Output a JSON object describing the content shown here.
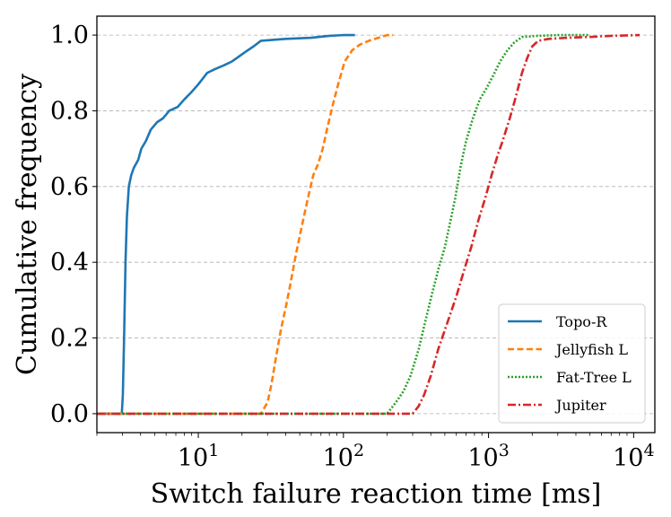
{
  "chart_data": {
    "type": "line",
    "title": "",
    "xlabel": "Switch failure reaction time [ms]",
    "ylabel": "Cumulative frequency",
    "xscale": "log",
    "xlim": [
      2,
      14000
    ],
    "ylim": [
      -0.05,
      1.05
    ],
    "grid": "y-dashed",
    "legend_position": "bottom-right",
    "xticks": [
      {
        "value": 10,
        "base": "10",
        "exp": "1"
      },
      {
        "value": 100,
        "base": "10",
        "exp": "2"
      },
      {
        "value": 1000,
        "base": "10",
        "exp": "3"
      },
      {
        "value": 10000,
        "base": "10",
        "exp": "4"
      }
    ],
    "yticks": [
      {
        "value": 0.0,
        "label": "0.0"
      },
      {
        "value": 0.2,
        "label": "0.2"
      },
      {
        "value": 0.4,
        "label": "0.4"
      },
      {
        "value": 0.6,
        "label": "0.6"
      },
      {
        "value": 0.8,
        "label": "0.8"
      },
      {
        "value": 1.0,
        "label": "1.0"
      }
    ],
    "series": [
      {
        "name": "Topo-R",
        "color": "#1f77b4",
        "dash": "solid",
        "points": [
          [
            2,
            0.0
          ],
          [
            2.97,
            0.0
          ],
          [
            3.02,
            0.05
          ],
          [
            3.08,
            0.2
          ],
          [
            3.15,
            0.4
          ],
          [
            3.22,
            0.52
          ],
          [
            3.32,
            0.6
          ],
          [
            3.45,
            0.63
          ],
          [
            3.6,
            0.65
          ],
          [
            3.85,
            0.67
          ],
          [
            4.05,
            0.7
          ],
          [
            4.35,
            0.72
          ],
          [
            4.7,
            0.75
          ],
          [
            5.2,
            0.77
          ],
          [
            5.7,
            0.78
          ],
          [
            6.0,
            0.79
          ],
          [
            6.3,
            0.8
          ],
          [
            7.2,
            0.81
          ],
          [
            8.0,
            0.83
          ],
          [
            9.0,
            0.85
          ],
          [
            10.0,
            0.87
          ],
          [
            11.5,
            0.9
          ],
          [
            13.0,
            0.91
          ],
          [
            15.0,
            0.92
          ],
          [
            17.0,
            0.93
          ],
          [
            18.5,
            0.94
          ],
          [
            21.0,
            0.955
          ],
          [
            24.0,
            0.97
          ],
          [
            27.0,
            0.985
          ],
          [
            40.0,
            0.99
          ],
          [
            60.0,
            0.993
          ],
          [
            80.0,
            0.998
          ],
          [
            100.0,
            1.0
          ],
          [
            120.0,
            1.0
          ]
        ]
      },
      {
        "name": "Jellyfish L",
        "color": "#ff7f0e",
        "dash": "dashed",
        "points": [
          [
            2,
            0.0
          ],
          [
            27.0,
            0.0
          ],
          [
            30.0,
            0.03
          ],
          [
            32.0,
            0.08
          ],
          [
            34.0,
            0.14
          ],
          [
            37.0,
            0.22
          ],
          [
            40.0,
            0.28
          ],
          [
            43.0,
            0.34
          ],
          [
            47.0,
            0.42
          ],
          [
            52.0,
            0.5
          ],
          [
            57.0,
            0.57
          ],
          [
            62.0,
            0.63
          ],
          [
            67.0,
            0.66
          ],
          [
            72.0,
            0.7
          ],
          [
            78.0,
            0.76
          ],
          [
            85.0,
            0.82
          ],
          [
            92.0,
            0.87
          ],
          [
            102.0,
            0.93
          ],
          [
            115.0,
            0.96
          ],
          [
            130.0,
            0.975
          ],
          [
            150.0,
            0.985
          ],
          [
            175.0,
            0.993
          ],
          [
            200.0,
            1.0
          ],
          [
            220.0,
            1.0
          ]
        ]
      },
      {
        "name": "Fat-Tree L",
        "color": "#2ca02c",
        "dash": "dotted",
        "points": [
          [
            2,
            0.0
          ],
          [
            200.0,
            0.0
          ],
          [
            230.0,
            0.03
          ],
          [
            260.0,
            0.06
          ],
          [
            290.0,
            0.1
          ],
          [
            330.0,
            0.17
          ],
          [
            370.0,
            0.25
          ],
          [
            410.0,
            0.32
          ],
          [
            450.0,
            0.38
          ],
          [
            500.0,
            0.44
          ],
          [
            540.0,
            0.5
          ],
          [
            590.0,
            0.57
          ],
          [
            640.0,
            0.65
          ],
          [
            700.0,
            0.72
          ],
          [
            780.0,
            0.78
          ],
          [
            870.0,
            0.83
          ],
          [
            970.0,
            0.86
          ],
          [
            1100.0,
            0.9
          ],
          [
            1200.0,
            0.93
          ],
          [
            1350.0,
            0.96
          ],
          [
            1500.0,
            0.98
          ],
          [
            1700.0,
            0.995
          ],
          [
            2200.0,
            0.998
          ],
          [
            3000.0,
            1.0
          ],
          [
            5000.0,
            1.0
          ]
        ]
      },
      {
        "name": "Jupiter",
        "color": "#d62728",
        "dash": "dashdot",
        "points": [
          [
            2,
            0.0
          ],
          [
            300.0,
            0.0
          ],
          [
            330.0,
            0.02
          ],
          [
            360.0,
            0.05
          ],
          [
            400.0,
            0.1
          ],
          [
            450.0,
            0.17
          ],
          [
            520.0,
            0.24
          ],
          [
            600.0,
            0.31
          ],
          [
            680.0,
            0.38
          ],
          [
            760.0,
            0.44
          ],
          [
            850.0,
            0.51
          ],
          [
            950.0,
            0.57
          ],
          [
            1050.0,
            0.63
          ],
          [
            1150.0,
            0.68
          ],
          [
            1250.0,
            0.72
          ],
          [
            1400.0,
            0.78
          ],
          [
            1550.0,
            0.84
          ],
          [
            1700.0,
            0.9
          ],
          [
            1850.0,
            0.94
          ],
          [
            2000.0,
            0.97
          ],
          [
            2200.0,
            0.985
          ],
          [
            2600.0,
            0.99
          ],
          [
            3500.0,
            0.993
          ],
          [
            5000.0,
            0.995
          ],
          [
            7000.0,
            0.998
          ],
          [
            11000.0,
            1.0
          ]
        ]
      }
    ]
  }
}
